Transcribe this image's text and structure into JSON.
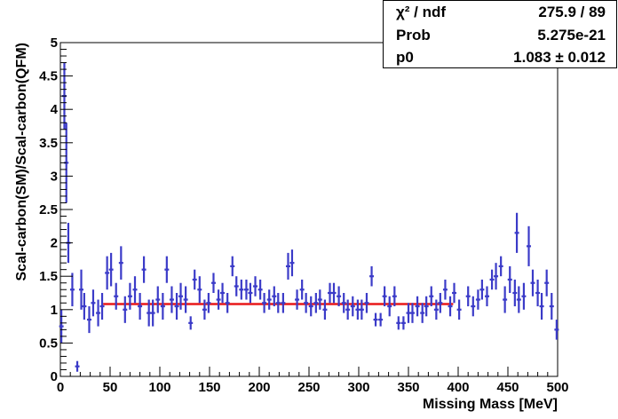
{
  "chart_data": {
    "type": "scatter",
    "xlabel": "Missing Mass [MeV]",
    "ylabel": "Scal-carbon(SM)/Scal-carbon(QFM)",
    "xlim": [
      0,
      500
    ],
    "ylim": [
      0,
      5
    ],
    "x_ticks": [
      "0",
      "50",
      "100",
      "150",
      "200",
      "250",
      "300",
      "350",
      "400",
      "450",
      "500"
    ],
    "y_ticks": [
      "0",
      "0.5",
      "1",
      "1.5",
      "2",
      "2.5",
      "3",
      "3.5",
      "4",
      "4.5",
      "5"
    ],
    "grid": false,
    "marker_color": "#3b3bc8",
    "fit_color": "#e8191a",
    "series": [
      {
        "points": [
          [
            1,
            0.75,
            0.25
          ],
          [
            4,
            4.2,
            0.5
          ],
          [
            6,
            3.2,
            0.6
          ],
          [
            8,
            2.0,
            0.3
          ],
          [
            12,
            1.3,
            0.25
          ],
          [
            17,
            0.15,
            0.08
          ],
          [
            21,
            1.3,
            0.3
          ],
          [
            24,
            1.05,
            0.2
          ],
          [
            29,
            0.85,
            0.2
          ],
          [
            33,
            1.1,
            0.2
          ],
          [
            38,
            0.95,
            0.2
          ],
          [
            42,
            1.05,
            0.2
          ],
          [
            47,
            1.55,
            0.25
          ],
          [
            51,
            1.6,
            0.25
          ],
          [
            56,
            1.2,
            0.2
          ],
          [
            61,
            1.7,
            0.25
          ],
          [
            65,
            1.0,
            0.2
          ],
          [
            70,
            1.2,
            0.2
          ],
          [
            75,
            1.3,
            0.2
          ],
          [
            80,
            1.05,
            0.2
          ],
          [
            84,
            1.6,
            0.2
          ],
          [
            89,
            0.95,
            0.2
          ],
          [
            93,
            0.95,
            0.2
          ],
          [
            98,
            1.15,
            0.2
          ],
          [
            103,
            1.05,
            0.2
          ],
          [
            107,
            1.6,
            0.2
          ],
          [
            112,
            1.15,
            0.2
          ],
          [
            117,
            1.05,
            0.2
          ],
          [
            121,
            1.2,
            0.2
          ],
          [
            126,
            1.15,
            0.2
          ],
          [
            131,
            0.8,
            0.1
          ],
          [
            135,
            1.45,
            0.15
          ],
          [
            140,
            1.3,
            0.2
          ],
          [
            145,
            1.0,
            0.15
          ],
          [
            149,
            1.1,
            0.15
          ],
          [
            154,
            1.4,
            0.15
          ],
          [
            159,
            1.15,
            0.15
          ],
          [
            163,
            1.25,
            0.15
          ],
          [
            168,
            1.1,
            0.15
          ],
          [
            173,
            1.65,
            0.15
          ],
          [
            177,
            1.35,
            0.15
          ],
          [
            182,
            1.3,
            0.15
          ],
          [
            187,
            1.3,
            0.15
          ],
          [
            191,
            1.25,
            0.15
          ],
          [
            196,
            1.35,
            0.15
          ],
          [
            201,
            1.3,
            0.15
          ],
          [
            205,
            1.1,
            0.15
          ],
          [
            210,
            1.15,
            0.15
          ],
          [
            215,
            1.2,
            0.15
          ],
          [
            219,
            1.1,
            0.15
          ],
          [
            224,
            1.1,
            0.15
          ],
          [
            229,
            1.65,
            0.2
          ],
          [
            233,
            1.7,
            0.2
          ],
          [
            238,
            1.15,
            0.15
          ],
          [
            243,
            1.3,
            0.15
          ],
          [
            247,
            1.1,
            0.15
          ],
          [
            252,
            1.05,
            0.15
          ],
          [
            257,
            1.1,
            0.15
          ],
          [
            261,
            1.15,
            0.15
          ],
          [
            266,
            1.0,
            0.15
          ],
          [
            271,
            1.25,
            0.15
          ],
          [
            275,
            1.25,
            0.15
          ],
          [
            280,
            1.2,
            0.15
          ],
          [
            285,
            1.1,
            0.15
          ],
          [
            289,
            1.0,
            0.15
          ],
          [
            294,
            1.05,
            0.15
          ],
          [
            299,
            1.0,
            0.15
          ],
          [
            303,
            1.0,
            0.15
          ],
          [
            308,
            1.1,
            0.15
          ],
          [
            313,
            1.5,
            0.15
          ],
          [
            317,
            0.85,
            0.1
          ],
          [
            322,
            0.85,
            0.1
          ],
          [
            326,
            1.2,
            0.15
          ],
          [
            331,
            1.05,
            0.15
          ],
          [
            336,
            1.2,
            0.15
          ],
          [
            340,
            0.8,
            0.1
          ],
          [
            345,
            0.8,
            0.1
          ],
          [
            350,
            0.95,
            0.15
          ],
          [
            354,
            0.95,
            0.15
          ],
          [
            359,
            1.05,
            0.15
          ],
          [
            364,
            0.95,
            0.15
          ],
          [
            368,
            1.05,
            0.15
          ],
          [
            373,
            1.2,
            0.15
          ],
          [
            378,
            1.0,
            0.15
          ],
          [
            382,
            1.1,
            0.15
          ],
          [
            387,
            1.3,
            0.15
          ],
          [
            392,
            1.05,
            0.15
          ],
          [
            396,
            1.25,
            0.15
          ],
          [
            401,
            1.0,
            0.15
          ],
          [
            410,
            1.2,
            0.15
          ],
          [
            415,
            1.05,
            0.15
          ],
          [
            420,
            1.15,
            0.15
          ],
          [
            424,
            1.3,
            0.15
          ],
          [
            429,
            1.2,
            0.15
          ],
          [
            434,
            1.45,
            0.15
          ],
          [
            438,
            1.5,
            0.2
          ],
          [
            443,
            1.65,
            0.15
          ],
          [
            447,
            1.15,
            0.2
          ],
          [
            452,
            1.45,
            0.2
          ],
          [
            457,
            1.25,
            0.2
          ],
          [
            461,
            1.15,
            0.2
          ],
          [
            466,
            1.2,
            0.2
          ],
          [
            471,
            1.95,
            0.3
          ],
          [
            475,
            1.4,
            0.2
          ],
          [
            480,
            1.25,
            0.2
          ],
          [
            484,
            1.05,
            0.2
          ],
          [
            489,
            1.4,
            0.2
          ],
          [
            494,
            1.05,
            0.2
          ],
          [
            459,
            2.15,
            0.3
          ],
          [
            499,
            0.7,
            0.15
          ]
        ]
      }
    ],
    "fit": {
      "x_from": 43,
      "x_to": 395,
      "value": 1.083
    },
    "stats": [
      {
        "label": "χ² / ndf",
        "value": "275.9 / 89"
      },
      {
        "label": "Prob",
        "value": "5.275e-21"
      },
      {
        "label": "p0",
        "value": "1.083 ± 0.012"
      }
    ]
  }
}
